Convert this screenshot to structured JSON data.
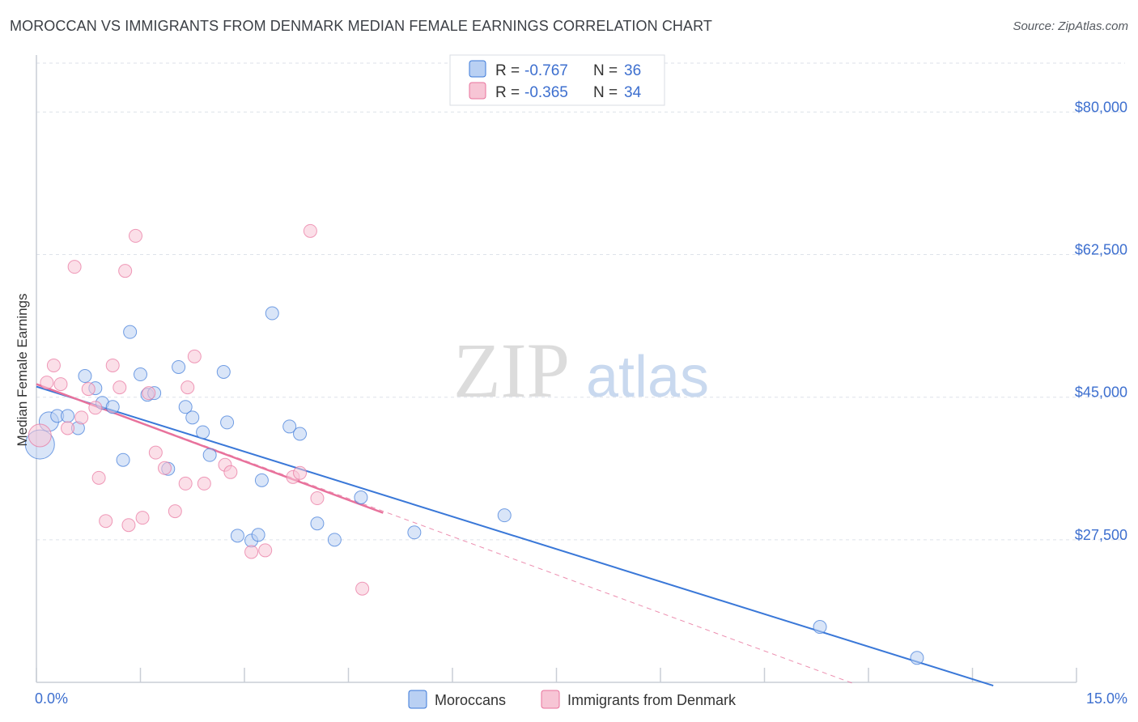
{
  "title": "MOROCCAN VS IMMIGRANTS FROM DENMARK MEDIAN FEMALE EARNINGS CORRELATION CHART",
  "source": "Source: ZipAtlas.com",
  "watermark": {
    "zip": "ZIP",
    "atlas": "atlas"
  },
  "colors": {
    "blue": "#3a78d8",
    "blue_fill": "#b9d0f3",
    "pink": "#e8729c",
    "pink_fill": "#f7c5d5",
    "grid": "#dde2ea",
    "axis_label": "#3d6fcf"
  },
  "chart_data": {
    "type": "scatter",
    "title": "MOROCCAN VS IMMIGRANTS FROM DENMARK MEDIAN FEMALE EARNINGS CORRELATION CHART",
    "xlabel": "",
    "ylabel": "Median Female Earnings",
    "xlim": [
      0,
      15
    ],
    "ylim": [
      10000,
      86000
    ],
    "x_tick_labels": [
      "0.0%",
      "15.0%"
    ],
    "y_ticks": [
      27500,
      45000,
      62500,
      80000
    ],
    "y_tick_labels": [
      "$27,500",
      "$45,000",
      "$62,500",
      "$80,000"
    ],
    "grid": true,
    "legend_position": "top-center",
    "series": [
      {
        "name": "Moroccans",
        "color": "#3a78d8",
        "R": "-0.767",
        "N": "36",
        "trend": {
          "x": [
            0,
            13.8
          ],
          "y": [
            46300,
            9600
          ],
          "style": "solid"
        },
        "points": [
          {
            "x": 0.05,
            "y": 39200,
            "r": 18
          },
          {
            "x": 0.18,
            "y": 42000,
            "r": 12
          },
          {
            "x": 0.3,
            "y": 42700
          },
          {
            "x": 0.45,
            "y": 42700
          },
          {
            "x": 0.6,
            "y": 41200
          },
          {
            "x": 0.7,
            "y": 47600
          },
          {
            "x": 0.85,
            "y": 46100
          },
          {
            "x": 0.95,
            "y": 44300
          },
          {
            "x": 1.1,
            "y": 43800
          },
          {
            "x": 1.25,
            "y": 37300
          },
          {
            "x": 1.35,
            "y": 53000
          },
          {
            "x": 1.5,
            "y": 47800
          },
          {
            "x": 1.6,
            "y": 45300
          },
          {
            "x": 1.7,
            "y": 45500
          },
          {
            "x": 1.9,
            "y": 36200
          },
          {
            "x": 2.05,
            "y": 48700
          },
          {
            "x": 2.15,
            "y": 43800
          },
          {
            "x": 2.25,
            "y": 42500
          },
          {
            "x": 2.4,
            "y": 40700
          },
          {
            "x": 2.5,
            "y": 37900
          },
          {
            "x": 2.7,
            "y": 48100
          },
          {
            "x": 2.75,
            "y": 41900
          },
          {
            "x": 2.9,
            "y": 28000
          },
          {
            "x": 3.1,
            "y": 27400
          },
          {
            "x": 3.2,
            "y": 28100
          },
          {
            "x": 3.25,
            "y": 34800
          },
          {
            "x": 3.4,
            "y": 55300
          },
          {
            "x": 3.65,
            "y": 41400
          },
          {
            "x": 3.8,
            "y": 40500
          },
          {
            "x": 4.05,
            "y": 29500
          },
          {
            "x": 4.3,
            "y": 27500
          },
          {
            "x": 4.68,
            "y": 32700
          },
          {
            "x": 5.45,
            "y": 28400
          },
          {
            "x": 6.75,
            "y": 30500
          },
          {
            "x": 11.3,
            "y": 16800
          },
          {
            "x": 12.7,
            "y": 13000
          }
        ]
      },
      {
        "name": "Immigrants from Denmark",
        "color": "#e8729c",
        "R": "-0.365",
        "N": "34",
        "trend": {
          "x": [
            0,
            5
          ],
          "y": [
            46600,
            30800
          ],
          "style": "solid",
          "extended_x": [
            0,
            11.8
          ],
          "extended_y": [
            46600,
            9800
          ]
        },
        "points": [
          {
            "x": 0.05,
            "y": 40300,
            "r": 14
          },
          {
            "x": 0.15,
            "y": 46800
          },
          {
            "x": 0.25,
            "y": 48900
          },
          {
            "x": 0.35,
            "y": 46600
          },
          {
            "x": 0.45,
            "y": 41200
          },
          {
            "x": 0.55,
            "y": 61000
          },
          {
            "x": 0.65,
            "y": 42500
          },
          {
            "x": 0.75,
            "y": 46000
          },
          {
            "x": 0.85,
            "y": 43700
          },
          {
            "x": 0.9,
            "y": 35100
          },
          {
            "x": 1.0,
            "y": 29800
          },
          {
            "x": 1.1,
            "y": 48900
          },
          {
            "x": 1.2,
            "y": 46200
          },
          {
            "x": 1.28,
            "y": 60500
          },
          {
            "x": 1.33,
            "y": 29300
          },
          {
            "x": 1.43,
            "y": 64800
          },
          {
            "x": 1.53,
            "y": 30200
          },
          {
            "x": 1.62,
            "y": 45500
          },
          {
            "x": 1.72,
            "y": 38200
          },
          {
            "x": 1.85,
            "y": 36300
          },
          {
            "x": 2.0,
            "y": 31000
          },
          {
            "x": 2.15,
            "y": 34400
          },
          {
            "x": 2.18,
            "y": 46200
          },
          {
            "x": 2.28,
            "y": 50000
          },
          {
            "x": 2.42,
            "y": 34400
          },
          {
            "x": 2.72,
            "y": 36700
          },
          {
            "x": 2.8,
            "y": 35800
          },
          {
            "x": 3.1,
            "y": 26000
          },
          {
            "x": 3.3,
            "y": 26200
          },
          {
            "x": 3.7,
            "y": 35200
          },
          {
            "x": 3.8,
            "y": 35700
          },
          {
            "x": 3.95,
            "y": 65400
          },
          {
            "x": 4.05,
            "y": 32600
          },
          {
            "x": 4.7,
            "y": 21500
          }
        ]
      }
    ]
  }
}
